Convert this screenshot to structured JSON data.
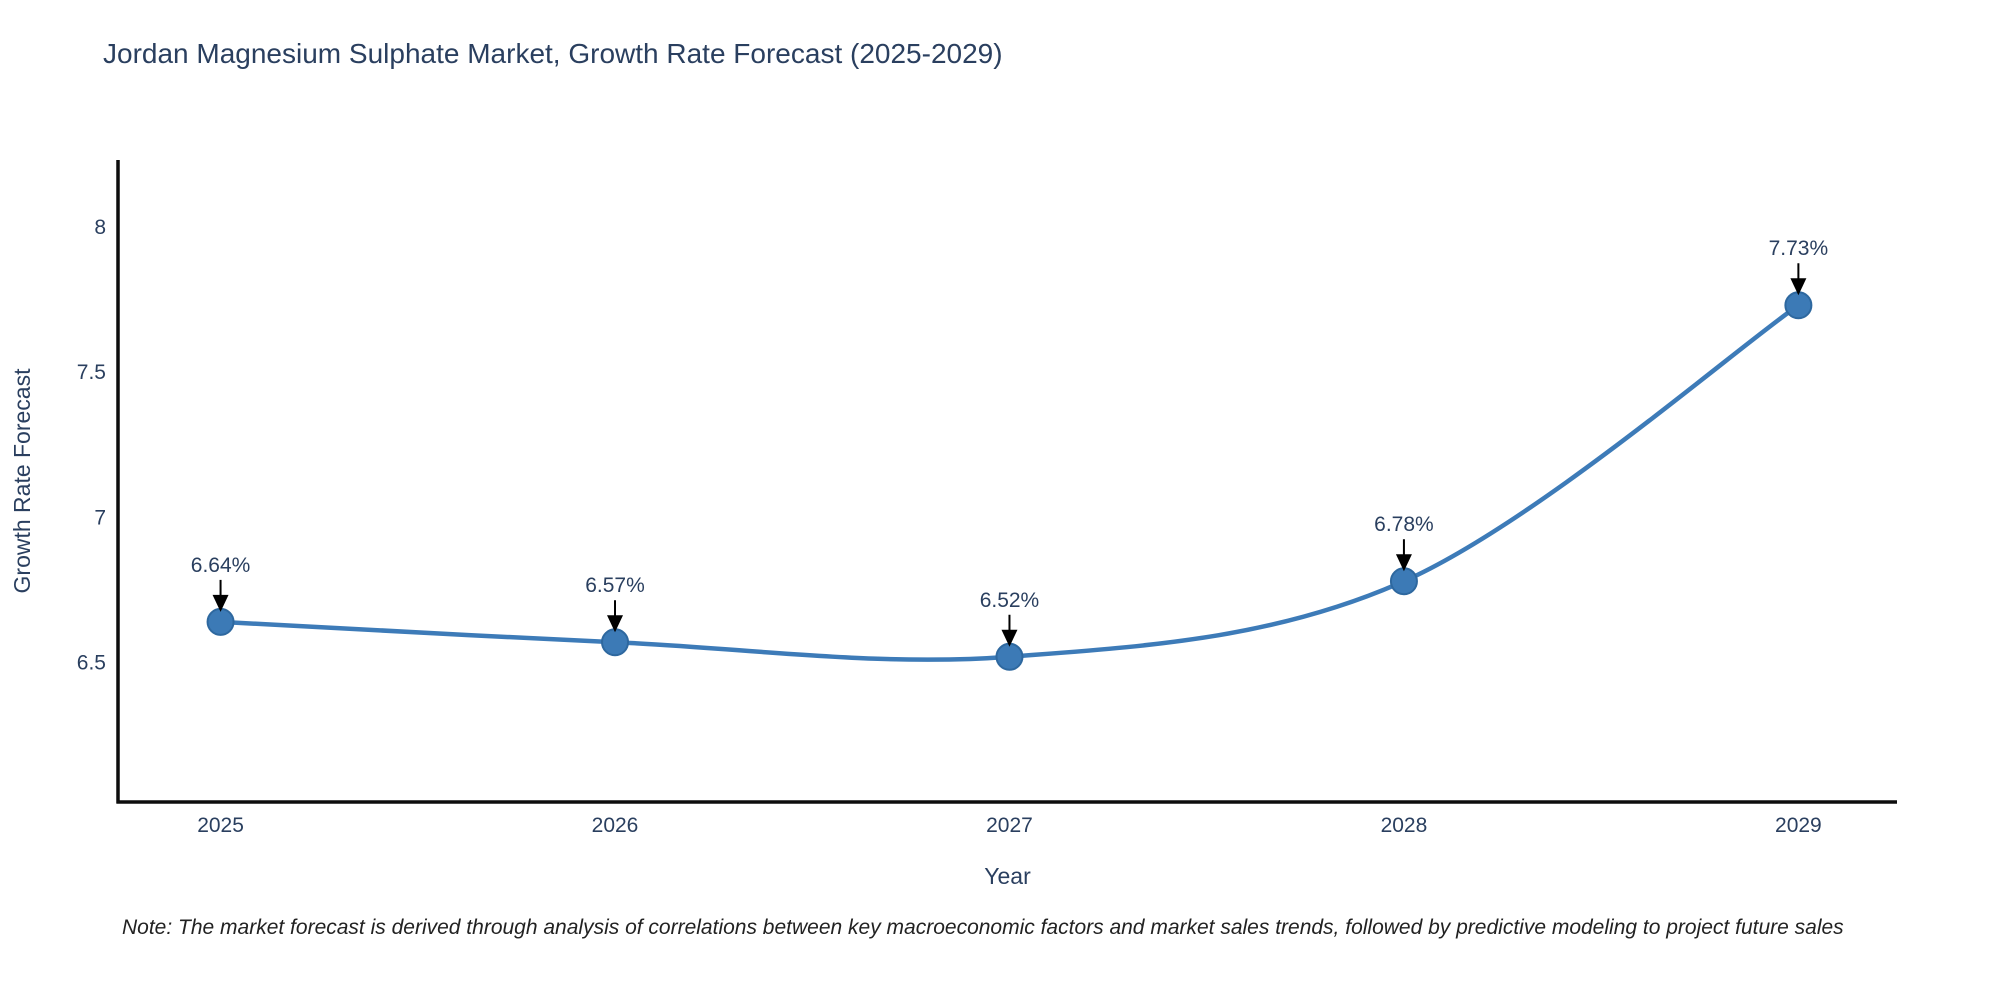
{
  "title": "Jordan Magnesium Sulphate Market, Growth Rate Forecast (2025-2029)",
  "note": "Note: The market forecast is derived through analysis of correlations between key macroeconomic factors and market sales trends, followed by predictive modeling to project future sales",
  "chart_data": {
    "type": "line",
    "line_shape": "spline",
    "x": [
      2025,
      2026,
      2027,
      2028,
      2029
    ],
    "values": [
      6.64,
      6.57,
      6.52,
      6.78,
      7.73
    ],
    "point_labels": [
      "6.64%",
      "6.57%",
      "6.52%",
      "6.78%",
      "7.73%"
    ],
    "xlabel": "Year",
    "ylabel": "Growth Rate Forecast",
    "xticks": [
      "2025",
      "2026",
      "2027",
      "2028",
      "2029"
    ],
    "yticks": [
      6.5,
      7,
      7.5,
      8
    ],
    "ytick_labels": [
      "6.5",
      "7",
      "7.5",
      "8"
    ],
    "xlim": [
      2024.74,
      2029.25
    ],
    "ylim": [
      6.02,
      8.23
    ],
    "grid": false,
    "legend": "none",
    "colors": {
      "line": "#3d7bb8",
      "marker_fill": "#3c7ab6",
      "marker_edge": "#2e689f",
      "axis_line": "#0d0d0d",
      "chart_text": "#2a3f5f",
      "annotation_arrow": "#000000",
      "note_text": "#222222",
      "background": "#ffffff"
    }
  }
}
